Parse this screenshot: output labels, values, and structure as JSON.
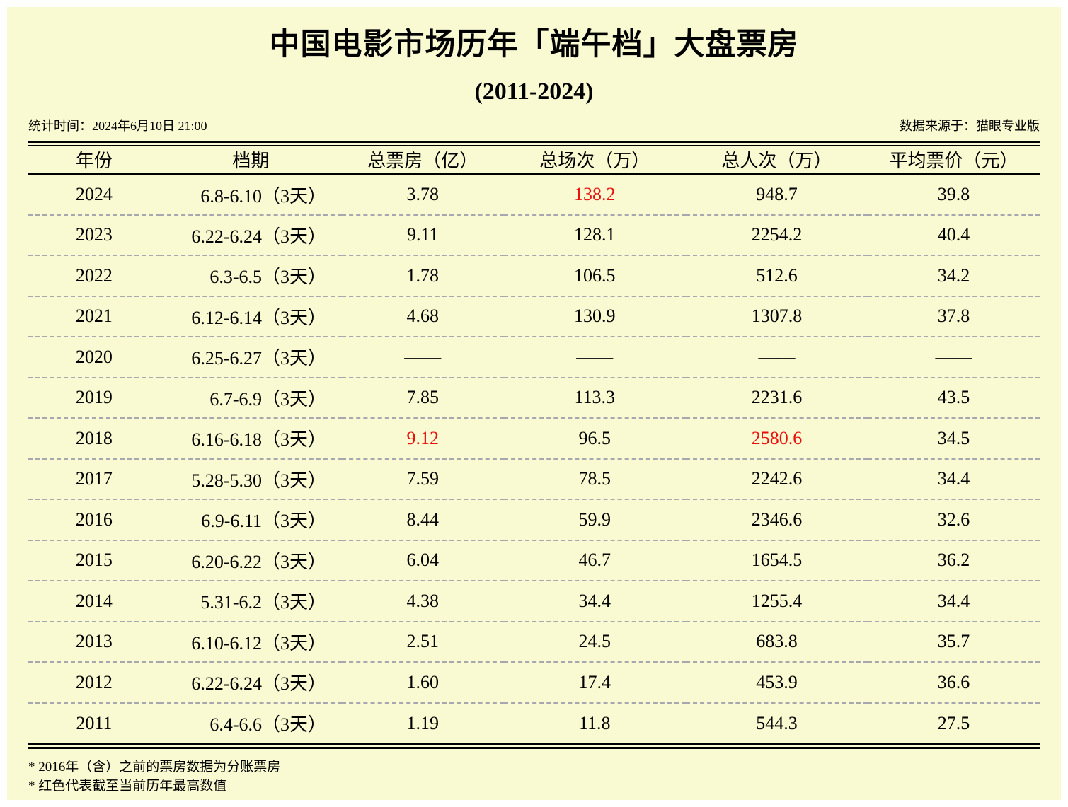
{
  "page": {
    "title": "中国电影市场历年「端午档」大盘票房",
    "subtitle": "(2011-2024)",
    "stat_time": "统计时间：2024年6月10日 21:00",
    "source": "数据来源于：猫眼专业版",
    "footnotes": [
      "* 2016年（含）之前的票房数据为分账票房",
      "* 红色代表截至当前历年最高数值"
    ]
  },
  "colors": {
    "background": "#FAFAD2",
    "text": "#000000",
    "highlight": "#e8100c",
    "separator": "#a7a7b0"
  },
  "table": {
    "columns": [
      "年份",
      "档期",
      "总票房（亿）",
      "总场次（万）",
      "总人次（万）",
      "平均票价（元）"
    ],
    "rows": [
      {
        "year": "2024",
        "period": "6.8-6.10（3天）",
        "gross": "3.78",
        "sessions": "138.2",
        "admissions": "948.7",
        "price": "39.8"
      },
      {
        "year": "2023",
        "period": "6.22-6.24（3天）",
        "gross": "9.11",
        "sessions": "128.1",
        "admissions": "2254.2",
        "price": "40.4"
      },
      {
        "year": "2022",
        "period": "6.3-6.5（3天）",
        "gross": "1.78",
        "sessions": "106.5",
        "admissions": "512.6",
        "price": "34.2"
      },
      {
        "year": "2021",
        "period": "6.12-6.14（3天）",
        "gross": "4.68",
        "sessions": "130.9",
        "admissions": "1307.8",
        "price": "37.8"
      },
      {
        "year": "2020",
        "period": "6.25-6.27（3天）",
        "gross": "——",
        "sessions": "——",
        "admissions": "——",
        "price": "——"
      },
      {
        "year": "2019",
        "period": "6.7-6.9（3天）",
        "gross": "7.85",
        "sessions": "113.3",
        "admissions": "2231.6",
        "price": "43.5"
      },
      {
        "year": "2018",
        "period": "6.16-6.18（3天）",
        "gross": "9.12",
        "sessions": "96.5",
        "admissions": "2580.6",
        "price": "34.5"
      },
      {
        "year": "2017",
        "period": "5.28-5.30（3天）",
        "gross": "7.59",
        "sessions": "78.5",
        "admissions": "2242.6",
        "price": "34.4"
      },
      {
        "year": "2016",
        "period": "6.9-6.11（3天）",
        "gross": "8.44",
        "sessions": "59.9",
        "admissions": "2346.6",
        "price": "32.6"
      },
      {
        "year": "2015",
        "period": "6.20-6.22（3天）",
        "gross": "6.04",
        "sessions": "46.7",
        "admissions": "1654.5",
        "price": "36.2"
      },
      {
        "year": "2014",
        "period": "5.31-6.2（3天）",
        "gross": "4.38",
        "sessions": "34.4",
        "admissions": "1255.4",
        "price": "34.4"
      },
      {
        "year": "2013",
        "period": "6.10-6.12（3天）",
        "gross": "2.51",
        "sessions": "24.5",
        "admissions": "683.8",
        "price": "35.7"
      },
      {
        "year": "2012",
        "period": "6.22-6.24（3天）",
        "gross": "1.60",
        "sessions": "17.4",
        "admissions": "453.9",
        "price": "36.6"
      },
      {
        "year": "2011",
        "period": "6.4-6.6（3天）",
        "gross": "1.19",
        "sessions": "11.8",
        "admissions": "544.3",
        "price": "27.5"
      }
    ],
    "highlight_cells": [
      [
        0,
        "sessions"
      ],
      [
        6,
        "gross"
      ],
      [
        6,
        "admissions"
      ]
    ]
  },
  "chart_data": {
    "type": "table",
    "title": "中国电影市场历年「端午档」大盘票房",
    "subtitle": "(2011-2024)",
    "columns": [
      "年份",
      "档期",
      "总票房（亿）",
      "总场次（万）",
      "总人次（万）",
      "平均票价（元）"
    ],
    "years": [
      2024,
      2023,
      2022,
      2021,
      2020,
      2019,
      2018,
      2017,
      2016,
      2015,
      2014,
      2013,
      2012,
      2011
    ],
    "periods": [
      "6.8-6.10（3天）",
      "6.22-6.24（3天）",
      "6.3-6.5（3天）",
      "6.12-6.14（3天）",
      "6.25-6.27（3天）",
      "6.7-6.9（3天）",
      "6.16-6.18（3天）",
      "5.28-5.30（3天）",
      "6.9-6.11（3天）",
      "6.20-6.22（3天）",
      "5.31-6.2（3天）",
      "6.10-6.12（3天）",
      "6.22-6.24（3天）",
      "6.4-6.6（3天）"
    ],
    "series": [
      {
        "name": "总票房（亿）",
        "values": [
          3.78,
          9.11,
          1.78,
          4.68,
          null,
          7.85,
          9.12,
          7.59,
          8.44,
          6.04,
          4.38,
          2.51,
          1.6,
          1.19
        ]
      },
      {
        "name": "总场次（万）",
        "values": [
          138.2,
          128.1,
          106.5,
          130.9,
          null,
          113.3,
          96.5,
          78.5,
          59.9,
          46.7,
          34.4,
          24.5,
          17.4,
          11.8
        ]
      },
      {
        "name": "总人次（万）",
        "values": [
          948.7,
          2254.2,
          512.6,
          1307.8,
          null,
          2231.6,
          2580.6,
          2242.6,
          2346.6,
          1654.5,
          1255.4,
          683.8,
          453.9,
          544.3
        ]
      },
      {
        "name": "平均票价（元）",
        "values": [
          39.8,
          40.4,
          34.2,
          37.8,
          null,
          43.5,
          34.5,
          34.4,
          32.6,
          36.2,
          34.4,
          35.7,
          36.6,
          27.5
        ]
      }
    ],
    "annotations": [
      "红色数值为截至当前历年最高：2024年总场次138.2万、2018年总票房9.12亿、2018年总人次2580.6万",
      "2020年无数据（——）"
    ]
  }
}
